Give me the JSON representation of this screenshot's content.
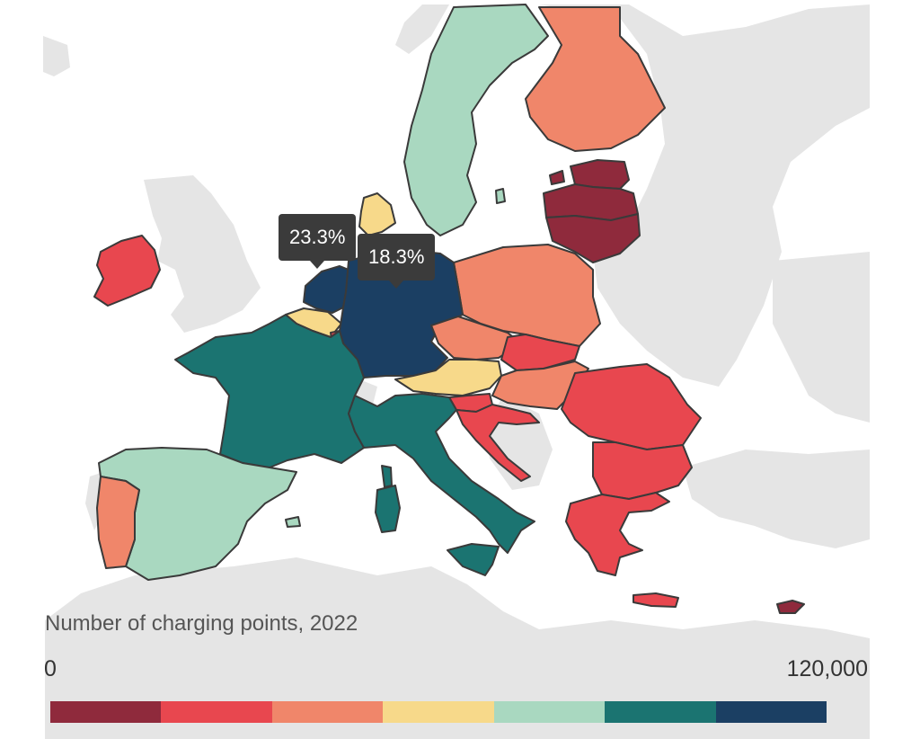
{
  "legend": {
    "title": "Number of charging points, 2022",
    "min_label": "0",
    "max_label": "120,000",
    "range": [
      0,
      120000
    ],
    "bins": [
      {
        "color": "#8f2a3c"
      },
      {
        "color": "#e8474f"
      },
      {
        "color": "#f0866a"
      },
      {
        "color": "#f7d98a"
      },
      {
        "color": "#a9d8c0"
      },
      {
        "color": "#1b7471"
      },
      {
        "color": "#1b3f63"
      }
    ]
  },
  "tooltips": [
    {
      "country": "Netherlands",
      "text": "23.3%"
    },
    {
      "country": "Germany",
      "text": "18.3%"
    }
  ],
  "colors": {
    "background_land": "#e5e5e5",
    "border": "#3a3a3a",
    "tooltip_bg": "#3b3b3b"
  },
  "countries": [
    {
      "name": "Netherlands",
      "bin": 7
    },
    {
      "name": "Germany",
      "bin": 7
    },
    {
      "name": "France",
      "bin": 6
    },
    {
      "name": "Italy",
      "bin": 6
    },
    {
      "name": "Sweden",
      "bin": 5
    },
    {
      "name": "Spain",
      "bin": 5
    },
    {
      "name": "Denmark",
      "bin": 4
    },
    {
      "name": "Belgium",
      "bin": 4
    },
    {
      "name": "Austria",
      "bin": 4
    },
    {
      "name": "Finland",
      "bin": 3
    },
    {
      "name": "Poland",
      "bin": 3
    },
    {
      "name": "Czechia",
      "bin": 3
    },
    {
      "name": "Portugal",
      "bin": 3
    },
    {
      "name": "Hungary",
      "bin": 3
    },
    {
      "name": "Ireland",
      "bin": 2
    },
    {
      "name": "Slovakia",
      "bin": 2
    },
    {
      "name": "Romania",
      "bin": 2
    },
    {
      "name": "Bulgaria",
      "bin": 2
    },
    {
      "name": "Greece",
      "bin": 2
    },
    {
      "name": "Croatia",
      "bin": 2
    },
    {
      "name": "Slovenia",
      "bin": 2
    },
    {
      "name": "Luxembourg",
      "bin": 2
    },
    {
      "name": "Estonia",
      "bin": 1
    },
    {
      "name": "Latvia",
      "bin": 1
    },
    {
      "name": "Lithuania",
      "bin": 1
    },
    {
      "name": "Cyprus",
      "bin": 1
    }
  ]
}
